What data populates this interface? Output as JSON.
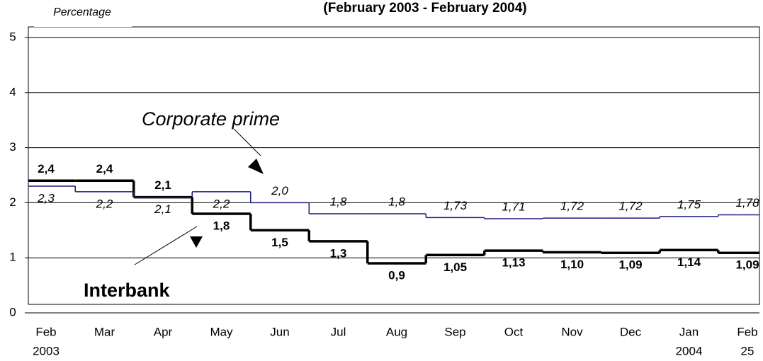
{
  "chart_data": {
    "type": "step-line",
    "title": "(February 2003 - February 2004)",
    "y_label": "Percentage",
    "categories": [
      "Feb",
      "Mar",
      "Apr",
      "May",
      "Jun",
      "Jul",
      "Aug",
      "Sep",
      "Oct",
      "Nov",
      "Dec",
      "Jan",
      "Feb"
    ],
    "category_sublabels": [
      "2003",
      null,
      null,
      null,
      null,
      null,
      null,
      null,
      null,
      null,
      null,
      "2004",
      "25"
    ],
    "ylim": [
      0,
      5
    ],
    "yticks": [
      0,
      1,
      2,
      3,
      4,
      5
    ],
    "grid": true,
    "annotations": [
      "Corporate prime",
      "Interbank"
    ],
    "series": [
      {
        "name": "Interbank",
        "color": "#000000",
        "values": [
          2.4,
          2.4,
          2.1,
          1.8,
          1.5,
          1.3,
          0.9,
          1.05,
          1.13,
          1.1,
          1.09,
          1.14,
          1.09
        ],
        "value_labels": [
          "2,4",
          "2,4",
          "2,1",
          "1,8",
          "1,5",
          "1,3",
          "0,9",
          "1,05",
          "1,13",
          "1,10",
          "1,09",
          "1,14",
          "1,09"
        ]
      },
      {
        "name": "Corporate prime",
        "color": "#1a1a80",
        "values": [
          2.3,
          2.2,
          2.1,
          2.2,
          2.0,
          1.8,
          1.8,
          1.73,
          1.71,
          1.72,
          1.72,
          1.75,
          1.78
        ],
        "value_labels": [
          "2,3",
          "2,2",
          "2,1",
          "2,2",
          "2,0",
          "1,8",
          "1,8",
          "1,73",
          "1,71",
          "1,72",
          "1,72",
          "1,75",
          "1,78"
        ]
      }
    ]
  }
}
